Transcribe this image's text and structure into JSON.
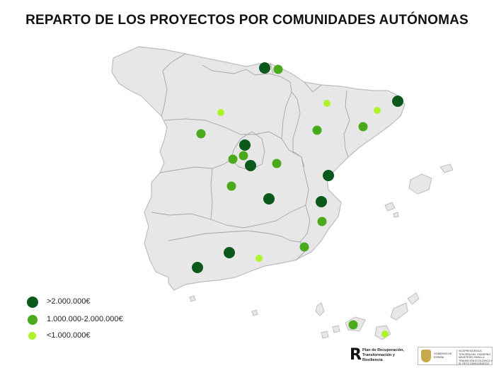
{
  "title": "REPARTO DE LOS PROYECTOS POR COMUNIDADES AUTÓNOMAS",
  "colors": {
    "dark": "#0b5a1c",
    "medium": "#4aaa1c",
    "light": "#aef22a",
    "region_fill": "#e8e7e8",
    "border": "#bdbdbd",
    "internal_border": "#9a9a9a"
  },
  "legend": [
    {
      "label": ">2.000.000€",
      "color": "#0b5a1c"
    },
    {
      "label": "1.000.000-2.000.000€",
      "color": "#4aaa1c"
    },
    {
      "label": "<1.000.000€",
      "color": "#aef22a"
    }
  ],
  "markers": [
    {
      "category": "dark"
    },
    {
      "category": "medium"
    },
    {
      "category": "light"
    },
    {
      "category": "medium"
    },
    {
      "category": "light"
    },
    {
      "category": "light"
    },
    {
      "category": "dark"
    },
    {
      "category": "medium"
    },
    {
      "category": "medium"
    },
    {
      "category": "medium"
    },
    {
      "category": "dark"
    },
    {
      "category": "medium"
    },
    {
      "category": "dark"
    },
    {
      "category": "medium"
    },
    {
      "category": "medium"
    },
    {
      "category": "dark"
    },
    {
      "category": "dark"
    },
    {
      "category": "dark"
    },
    {
      "category": "medium"
    },
    {
      "category": "medium"
    },
    {
      "category": "dark"
    },
    {
      "category": "light"
    },
    {
      "category": "dark"
    },
    {
      "category": "medium"
    },
    {
      "category": "light"
    }
  ],
  "logos": {
    "plan_text": "Plan de Recuperación, Transformación y Resiliencia",
    "gov_text": "GOBIERNO DE ESPAÑA",
    "ministry_text": "VICEPRESIDENCIA TERCERA DEL GOBIERNO MINISTERIO PARA LA TRANSICIÓN ECOLÓGICA Y EL RETO DEMOGRÁFICO"
  }
}
